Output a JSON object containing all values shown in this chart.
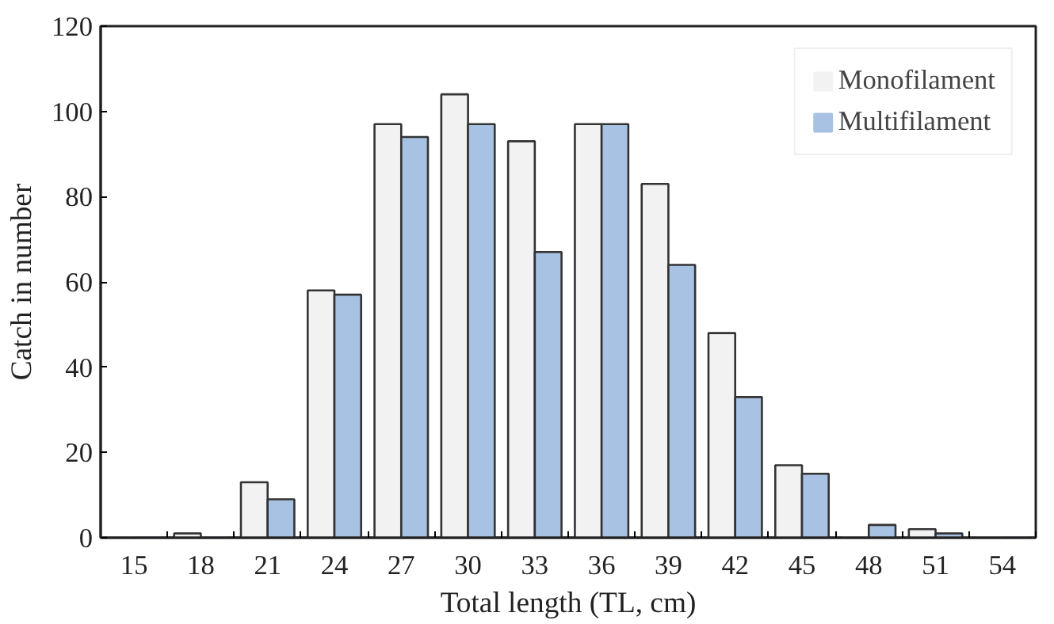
{
  "chart_data": {
    "type": "bar",
    "xlabel": "Total length (TL, cm)",
    "ylabel": "Catch in number",
    "categories": [
      "15",
      "18",
      "21",
      "24",
      "27",
      "30",
      "33",
      "36",
      "39",
      "42",
      "45",
      "48",
      "51",
      "54"
    ],
    "series": [
      {
        "name": "Monofilament",
        "color": "#f2f2f2",
        "values": [
          0,
          1,
          13,
          58,
          97,
          104,
          93,
          97,
          83,
          48,
          17,
          0,
          2,
          0
        ]
      },
      {
        "name": "Multifilament",
        "color": "#a7c2e2",
        "values": [
          0,
          0,
          9,
          57,
          94,
          97,
          67,
          97,
          64,
          33,
          15,
          3,
          1,
          0
        ]
      }
    ],
    "ylim": [
      0,
      120
    ],
    "yticks": [
      0,
      20,
      40,
      60,
      80,
      100,
      120
    ],
    "grid": false,
    "legend": "top right"
  }
}
